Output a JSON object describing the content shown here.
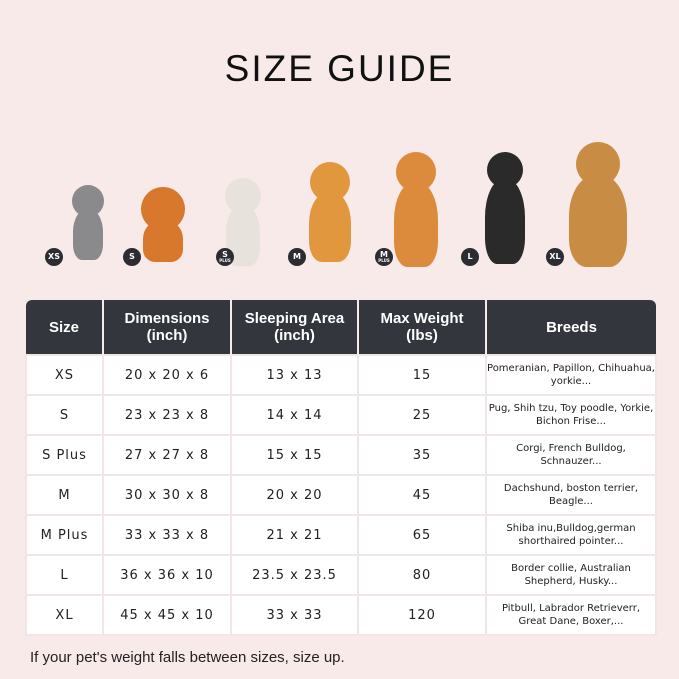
{
  "title": "SIZE GUIDE",
  "pets": [
    {
      "badge": "XS",
      "sub": "",
      "color": "#8a8a8c",
      "animal": "cat"
    },
    {
      "badge": "S",
      "sub": "",
      "color": "#d7782c",
      "animal": "pomeranian"
    },
    {
      "badge": "S",
      "sub": "PLUS",
      "color": "#e8e2dc",
      "animal": "french-bulldog"
    },
    {
      "badge": "M",
      "sub": "",
      "color": "#e1973e",
      "animal": "corgi"
    },
    {
      "badge": "M",
      "sub": "PLUS",
      "color": "#dc8a3c",
      "animal": "shiba-inu"
    },
    {
      "badge": "L",
      "sub": "",
      "color": "#2a2a2a",
      "animal": "border-collie"
    },
    {
      "badge": "XL",
      "sub": "",
      "color": "#c98c45",
      "animal": "golden-retriever"
    }
  ],
  "table": {
    "headers": [
      "Size",
      "Dimensions\n(inch)",
      "Sleeping Area\n(inch)",
      "Max Weight\n(lbs)",
      "Breeds"
    ],
    "rows": [
      [
        "XS",
        "20 x 20 x 6",
        "13 x 13",
        "15",
        "Pomeranian, Papillon, Chihuahua, yorkie..."
      ],
      [
        "S",
        "23 x 23 x 8",
        "14 x 14",
        "25",
        "Pug, Shih tzu, Toy poodle, Yorkie, Bichon Frise..."
      ],
      [
        "S Plus",
        "27 x 27 x 8",
        "15 x 15",
        "35",
        "Corgi, French Bulldog, Schnauzer..."
      ],
      [
        "M",
        "30 x 30 x 8",
        "20 x 20",
        "45",
        "Dachshund, boston terrier, Beagle..."
      ],
      [
        "M Plus",
        "33 x 33 x 8",
        "21 x 21",
        "65",
        "Shiba inu,Bulldog,german shorthaired pointer..."
      ],
      [
        "L",
        "36 x 36 x 10",
        "23.5 x 23.5",
        "80",
        "Border collie, Australian Shepherd, Husky..."
      ],
      [
        "XL",
        "45 x 45 x 10",
        "33 x 33",
        "120",
        "Pitbull, Labrador Retrieverr, Great Dane, Boxer,..."
      ]
    ]
  },
  "note": "If your pet's weight falls between sizes, size up."
}
